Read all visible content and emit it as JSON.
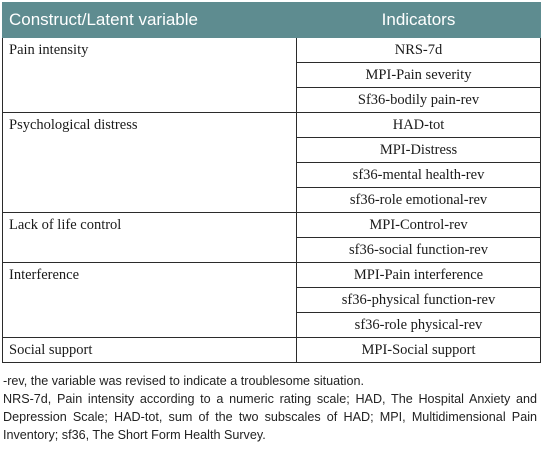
{
  "table": {
    "headers": [
      "Construct/Latent variable",
      "Indicators"
    ],
    "groups": [
      {
        "construct": "Pain intensity",
        "indicators": [
          "NRS-7d",
          "MPI-Pain severity",
          "Sf36-bodily pain-rev"
        ]
      },
      {
        "construct": "Psychological distress",
        "indicators": [
          "HAD-tot",
          "MPI-Distress",
          "sf36-mental health-rev",
          "sf36-role emotional-rev"
        ]
      },
      {
        "construct": "Lack of life control",
        "indicators": [
          "MPI-Control-rev",
          "sf36-social function-rev"
        ]
      },
      {
        "construct": "Interference",
        "indicators": [
          "MPI-Pain interference",
          "sf36-physical function-rev",
          "sf36-role physical-rev"
        ]
      },
      {
        "construct": "Social support",
        "indicators": [
          "MPI-Social support"
        ]
      }
    ]
  },
  "notes": {
    "line1": "-rev, the variable was revised to indicate a troublesome situation.",
    "line2": "NRS-7d, Pain intensity according to a numeric rating scale; HAD, The Hospital Anxiety and Depression Scale; HAD-tot, sum of the two subscales of HAD; MPI, Multidimensional Pain Inventory; sf36, The Short Form Health Survey."
  }
}
